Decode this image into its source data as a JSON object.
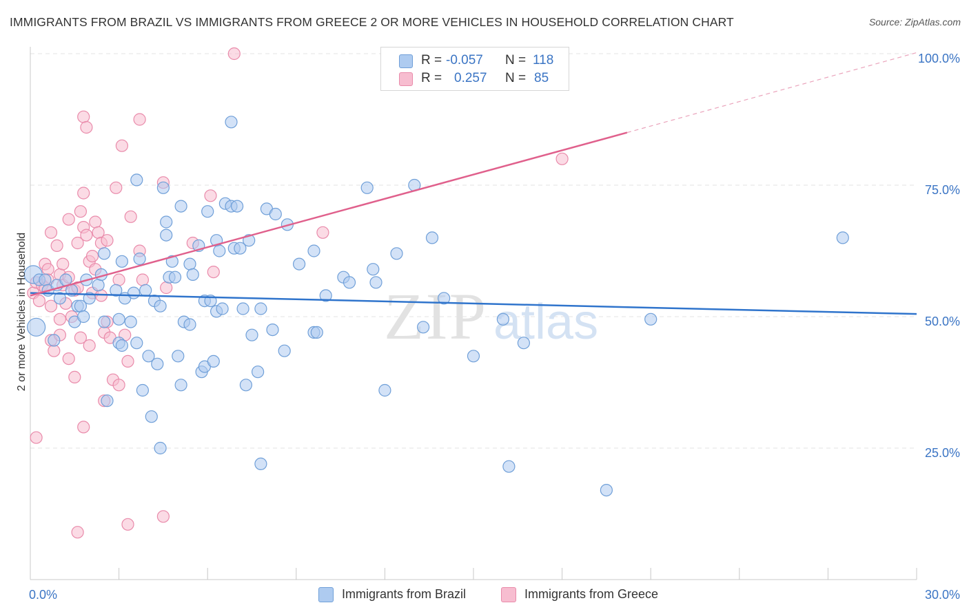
{
  "title": "IMMIGRANTS FROM BRAZIL VS IMMIGRANTS FROM GREECE 2 OR MORE VEHICLES IN HOUSEHOLD CORRELATION CHART",
  "source": "Source: ZipAtlas.com",
  "watermark": {
    "zip": "ZIP",
    "atlas": "atlas"
  },
  "stats": {
    "brazil": {
      "r_label": "R =",
      "r_value": "-0.057",
      "n_label": "N =",
      "n_value": "118"
    },
    "greece": {
      "r_label": "R =",
      "r_value": "0.257",
      "n_label": "N =",
      "n_value": "85"
    }
  },
  "legend": {
    "brazil": "Immigrants from Brazil",
    "greece": "Immigrants from Greece"
  },
  "colors": {
    "brazil_fill": "#aecbf0",
    "brazil_stroke": "#6f9fd8",
    "brazil_line": "#2f74cc",
    "greece_fill": "#f7bdd0",
    "greece_stroke": "#e98aaa",
    "greece_line": "#e0608c",
    "axis_tick_label": "#3a74c4",
    "grid": "#e3e3e3"
  },
  "chart_data": {
    "type": "scatter",
    "title": "IMMIGRANTS FROM BRAZIL VS IMMIGRANTS FROM GREECE 2 OR MORE VEHICLES IN HOUSEHOLD CORRELATION CHART",
    "xlabel": "",
    "ylabel": "2 or more Vehicles in Household",
    "xlim": [
      0,
      30
    ],
    "ylim": [
      0,
      105
    ],
    "x_tick_labels": [
      {
        "value": 0,
        "label": "0.0%"
      },
      {
        "value": 30,
        "label": "30.0%"
      }
    ],
    "y_tick_labels": [
      {
        "value": 25,
        "label": "25.0%"
      },
      {
        "value": 50,
        "label": "50.0%"
      },
      {
        "value": 75,
        "label": "75.0%"
      },
      {
        "value": 100,
        "label": "100.0%"
      }
    ],
    "x_minor_ticks": [
      0,
      3,
      6,
      9,
      12,
      15,
      18,
      21,
      24,
      27,
      30
    ],
    "series": [
      {
        "name": "Immigrants from Brazil",
        "r": -0.057,
        "n": 118,
        "trend": {
          "x": [
            0,
            30
          ],
          "y": [
            54.5,
            50.5
          ]
        },
        "points": [
          [
            0.1,
            58
          ],
          [
            0.2,
            48
          ],
          [
            0.3,
            57
          ],
          [
            0.5,
            57
          ],
          [
            0.6,
            55
          ],
          [
            0.8,
            45.5
          ],
          [
            0.9,
            56
          ],
          [
            1.0,
            53.5
          ],
          [
            1.2,
            57
          ],
          [
            1.4,
            55
          ],
          [
            1.5,
            49
          ],
          [
            1.6,
            52
          ],
          [
            1.7,
            52
          ],
          [
            1.8,
            50
          ],
          [
            1.9,
            57
          ],
          [
            2.0,
            53.5
          ],
          [
            2.3,
            56
          ],
          [
            2.4,
            58
          ],
          [
            2.5,
            62
          ],
          [
            2.5,
            49
          ],
          [
            2.6,
            34
          ],
          [
            2.9,
            55
          ],
          [
            3.0,
            49.5
          ],
          [
            3.0,
            45
          ],
          [
            3.1,
            44.5
          ],
          [
            3.1,
            60.5
          ],
          [
            3.2,
            53.5
          ],
          [
            3.4,
            49
          ],
          [
            3.5,
            54.5
          ],
          [
            3.6,
            76
          ],
          [
            3.6,
            45
          ],
          [
            3.7,
            61
          ],
          [
            3.8,
            36
          ],
          [
            3.9,
            55
          ],
          [
            4.0,
            42.5
          ],
          [
            4.1,
            31
          ],
          [
            4.2,
            53
          ],
          [
            4.3,
            41
          ],
          [
            4.4,
            52
          ],
          [
            4.4,
            25
          ],
          [
            4.5,
            74.5
          ],
          [
            4.6,
            65.5
          ],
          [
            4.6,
            68
          ],
          [
            4.7,
            57.5
          ],
          [
            4.8,
            60.5
          ],
          [
            4.9,
            57.5
          ],
          [
            5.0,
            42.5
          ],
          [
            5.1,
            37
          ],
          [
            5.1,
            71
          ],
          [
            5.2,
            49
          ],
          [
            5.4,
            60
          ],
          [
            5.4,
            48.5
          ],
          [
            5.5,
            58
          ],
          [
            5.7,
            63.5
          ],
          [
            5.8,
            39.5
          ],
          [
            5.9,
            40.5
          ],
          [
            5.9,
            53
          ],
          [
            6.0,
            70
          ],
          [
            6.1,
            53
          ],
          [
            6.2,
            41.5
          ],
          [
            6.3,
            51
          ],
          [
            6.3,
            64.5
          ],
          [
            6.4,
            62.5
          ],
          [
            6.5,
            51.5
          ],
          [
            6.6,
            71.5
          ],
          [
            6.8,
            71
          ],
          [
            6.8,
            87
          ],
          [
            6.9,
            63
          ],
          [
            7.0,
            71
          ],
          [
            7.1,
            63
          ],
          [
            7.2,
            51.5
          ],
          [
            7.3,
            37
          ],
          [
            7.4,
            64.5
          ],
          [
            7.5,
            46.5
          ],
          [
            7.7,
            39.5
          ],
          [
            7.8,
            51.5
          ],
          [
            7.8,
            22
          ],
          [
            8.0,
            70.5
          ],
          [
            8.2,
            47.5
          ],
          [
            8.3,
            69.5
          ],
          [
            8.6,
            43.5
          ],
          [
            8.7,
            67.5
          ],
          [
            9.1,
            60
          ],
          [
            9.6,
            47
          ],
          [
            9.6,
            62.5
          ],
          [
            9.7,
            47
          ],
          [
            10.0,
            54
          ],
          [
            10.6,
            57.5
          ],
          [
            10.8,
            56.5
          ],
          [
            11.4,
            74.5
          ],
          [
            11.6,
            59
          ],
          [
            11.7,
            56.5
          ],
          [
            12.0,
            36
          ],
          [
            12.4,
            62
          ],
          [
            13.0,
            75
          ],
          [
            13.3,
            48
          ],
          [
            13.6,
            65
          ],
          [
            14.0,
            53.5
          ],
          [
            15.0,
            42.5
          ],
          [
            16.0,
            49.5
          ],
          [
            16.2,
            21.5
          ],
          [
            16.7,
            45
          ],
          [
            19.5,
            17
          ],
          [
            21.0,
            49.5
          ],
          [
            27.5,
            65
          ]
        ]
      },
      {
        "name": "Immigrants from Greece",
        "r": 0.257,
        "n": 85,
        "trend": {
          "x": [
            0,
            20.2
          ],
          "y": [
            54,
            85
          ]
        },
        "trend_dashed": {
          "x": [
            20.2,
            30
          ],
          "y": [
            85,
            100.2
          ]
        },
        "points": [
          [
            0.1,
            54.5
          ],
          [
            0.2,
            56.5
          ],
          [
            0.2,
            27
          ],
          [
            0.3,
            53
          ],
          [
            0.4,
            56
          ],
          [
            0.5,
            55.5
          ],
          [
            0.5,
            60
          ],
          [
            0.6,
            59
          ],
          [
            0.6,
            57
          ],
          [
            0.7,
            66
          ],
          [
            0.7,
            45.5
          ],
          [
            0.7,
            52
          ],
          [
            0.8,
            43.5
          ],
          [
            0.9,
            63.5
          ],
          [
            1.0,
            58
          ],
          [
            1.0,
            49.5
          ],
          [
            1.0,
            46.5
          ],
          [
            1.1,
            56
          ],
          [
            1.1,
            60
          ],
          [
            1.2,
            52.5
          ],
          [
            1.3,
            68.5
          ],
          [
            1.3,
            42
          ],
          [
            1.3,
            57.5
          ],
          [
            1.4,
            50
          ],
          [
            1.5,
            55
          ],
          [
            1.5,
            38.5
          ],
          [
            1.6,
            55.5
          ],
          [
            1.6,
            64
          ],
          [
            1.6,
            9
          ],
          [
            1.7,
            70
          ],
          [
            1.7,
            46
          ],
          [
            1.8,
            88
          ],
          [
            1.8,
            67
          ],
          [
            1.8,
            73.5
          ],
          [
            1.8,
            29
          ],
          [
            1.9,
            86
          ],
          [
            1.9,
            65.5
          ],
          [
            2.0,
            60.5
          ],
          [
            2.0,
            44.5
          ],
          [
            2.1,
            54.5
          ],
          [
            2.1,
            61.5
          ],
          [
            2.2,
            68
          ],
          [
            2.2,
            59
          ],
          [
            2.3,
            66
          ],
          [
            2.4,
            64
          ],
          [
            2.4,
            54
          ],
          [
            2.5,
            47
          ],
          [
            2.5,
            34
          ],
          [
            2.6,
            49
          ],
          [
            2.6,
            64.5
          ],
          [
            2.7,
            46
          ],
          [
            2.8,
            38
          ],
          [
            2.9,
            74.5
          ],
          [
            3.0,
            57
          ],
          [
            3.0,
            37
          ],
          [
            3.1,
            82.5
          ],
          [
            3.2,
            46.5
          ],
          [
            3.3,
            41.5
          ],
          [
            3.3,
            10.5
          ],
          [
            3.4,
            69
          ],
          [
            3.7,
            87.5
          ],
          [
            3.7,
            62.5
          ],
          [
            3.8,
            57
          ],
          [
            4.5,
            75.5
          ],
          [
            4.5,
            12
          ],
          [
            4.6,
            55.5
          ],
          [
            5.5,
            64
          ],
          [
            6.1,
            73
          ],
          [
            6.2,
            58.5
          ],
          [
            6.9,
            100
          ],
          [
            9.9,
            66
          ],
          [
            18.0,
            80
          ]
        ]
      }
    ]
  }
}
